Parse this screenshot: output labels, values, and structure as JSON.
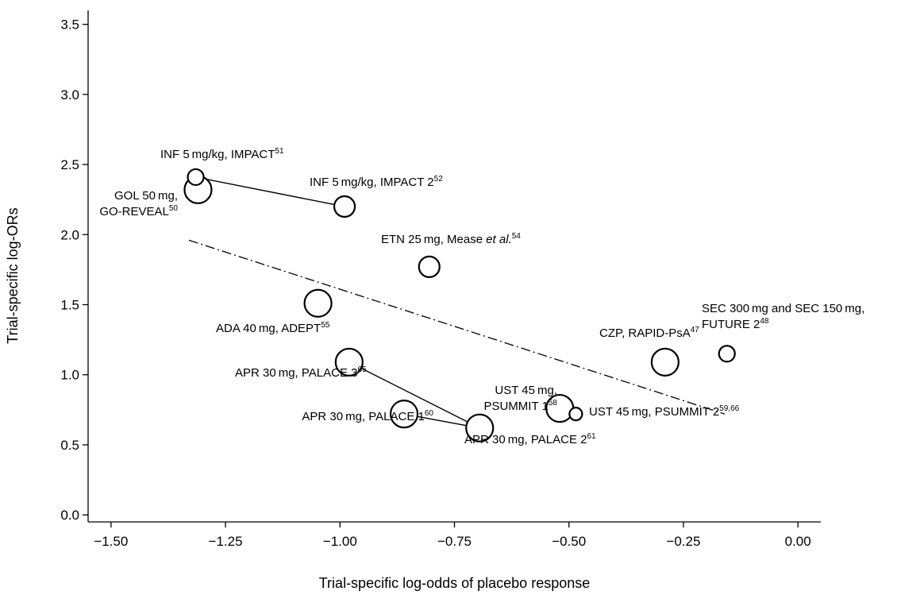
{
  "chart_data": {
    "type": "scatter",
    "title": "",
    "xlabel": "Trial-specific log-odds of placebo response",
    "ylabel": "Trial-specific log-ORs",
    "xlim": [
      -1.55,
      0.05
    ],
    "ylim": [
      -0.05,
      3.6
    ],
    "xticks": [
      "−1.50",
      "−1.25",
      "−1.00",
      "−0.75",
      "−0.50",
      "−0.25",
      "0.00"
    ],
    "xtick_values": [
      -1.5,
      -1.25,
      -1.0,
      -0.75,
      -0.5,
      -0.25,
      0.0
    ],
    "yticks": [
      "0.0",
      "0.5",
      "1.0",
      "1.5",
      "2.0",
      "2.5",
      "3.0",
      "3.5"
    ],
    "ytick_values": [
      0,
      0.5,
      1.0,
      1.5,
      2.0,
      2.5,
      3.0,
      3.5
    ],
    "grid": false,
    "points": [
      {
        "id": "inf-impact",
        "x": -1.315,
        "y": 2.41,
        "size": "small"
      },
      {
        "id": "gol-goreveal",
        "x": -1.31,
        "y": 2.32,
        "size": "large"
      },
      {
        "id": "inf-impact2",
        "x": -0.99,
        "y": 2.2,
        "size": "medium"
      },
      {
        "id": "etn-mease",
        "x": -0.805,
        "y": 1.77,
        "size": "medium"
      },
      {
        "id": "ada-adept",
        "x": -1.048,
        "y": 1.51,
        "size": "large"
      },
      {
        "id": "apr-palace3",
        "x": -0.98,
        "y": 1.09,
        "size": "large"
      },
      {
        "id": "apr-palace1",
        "x": -0.86,
        "y": 0.72,
        "size": "large"
      },
      {
        "id": "apr-palace2",
        "x": -0.695,
        "y": 0.62,
        "size": "large"
      },
      {
        "id": "ust-psummit1",
        "x": -0.52,
        "y": 0.76,
        "size": "large"
      },
      {
        "id": "ust-psummit2",
        "x": -0.485,
        "y": 0.72,
        "size": "tiny"
      },
      {
        "id": "czp-rapidpsa",
        "x": -0.29,
        "y": 1.09,
        "size": "large"
      },
      {
        "id": "sec-future2",
        "x": -0.155,
        "y": 1.15,
        "size": "small"
      }
    ],
    "connectors": [
      {
        "from": "inf-impact",
        "to": "inf-impact2"
      },
      {
        "from": "apr-palace3",
        "to": "apr-palace2"
      },
      {
        "from": "apr-palace1",
        "to": "apr-palace2"
      },
      {
        "from": "ust-psummit1",
        "to": "ust-psummit2"
      }
    ],
    "regression_line": {
      "x": [
        -1.33,
        -0.16
      ],
      "y": [
        1.96,
        0.72
      ],
      "style": "dash-dot"
    },
    "labels": [
      {
        "id": "inf-impact",
        "lines": [
          [
            {
              "t": "INF 5 mg/kg, IMPACT"
            },
            {
              "t": "51",
              "sup": true
            }
          ]
        ]
      },
      {
        "id": "gol-goreveal",
        "lines": [
          [
            {
              "t": "GOL 50 mg,"
            }
          ],
          [
            {
              "t": "GO-REVEAL"
            },
            {
              "t": "50",
              "sup": true
            }
          ]
        ]
      },
      {
        "id": "inf-impact2",
        "lines": [
          [
            {
              "t": "INF 5 mg/kg, IMPACT 2"
            },
            {
              "t": "52",
              "sup": true
            }
          ]
        ]
      },
      {
        "id": "etn-mease",
        "lines": [
          [
            {
              "t": "ETN 25 mg, Mease "
            },
            {
              "t": "et al.",
              "italic": true
            },
            {
              "t": "54",
              "sup": true
            }
          ]
        ]
      },
      {
        "id": "ada-adept",
        "lines": [
          [
            {
              "t": "ADA 40 mg, ADEPT"
            },
            {
              "t": "55",
              "sup": true
            }
          ]
        ]
      },
      {
        "id": "apr-palace3",
        "lines": [
          [
            {
              "t": "APR 30 mg, PALACE 3"
            },
            {
              "t": "65",
              "sup": true
            }
          ]
        ]
      },
      {
        "id": "ust-psummit1",
        "lines": [
          [
            {
              "t": "UST 45 mg,"
            }
          ],
          [
            {
              "t": "PSUMMIT 1"
            },
            {
              "t": "58",
              "sup": true
            }
          ]
        ]
      },
      {
        "id": "apr-palace1",
        "lines": [
          [
            {
              "t": "APR 30 mg, PALACE 1"
            },
            {
              "t": "60",
              "sup": true
            }
          ]
        ]
      },
      {
        "id": "apr-palace2",
        "lines": [
          [
            {
              "t": "APR 30 mg, PALACE 2"
            },
            {
              "t": "61",
              "sup": true
            }
          ]
        ]
      },
      {
        "id": "ust-psummit2",
        "lines": [
          [
            {
              "t": "UST 45 mg, PSUMMIT 2"
            },
            {
              "t": "59,66",
              "sup": true
            }
          ]
        ]
      },
      {
        "id": "czp-rapidpsa",
        "lines": [
          [
            {
              "t": "CZP, RAPID-PsA"
            },
            {
              "t": "47",
              "sup": true
            }
          ]
        ]
      },
      {
        "id": "sec-future2",
        "lines": [
          [
            {
              "t": "SEC 300 mg and SEC 150 mg,"
            }
          ],
          [
            {
              "t": "FUTURE 2"
            },
            {
              "t": "48",
              "sup": true
            }
          ]
        ]
      }
    ]
  }
}
